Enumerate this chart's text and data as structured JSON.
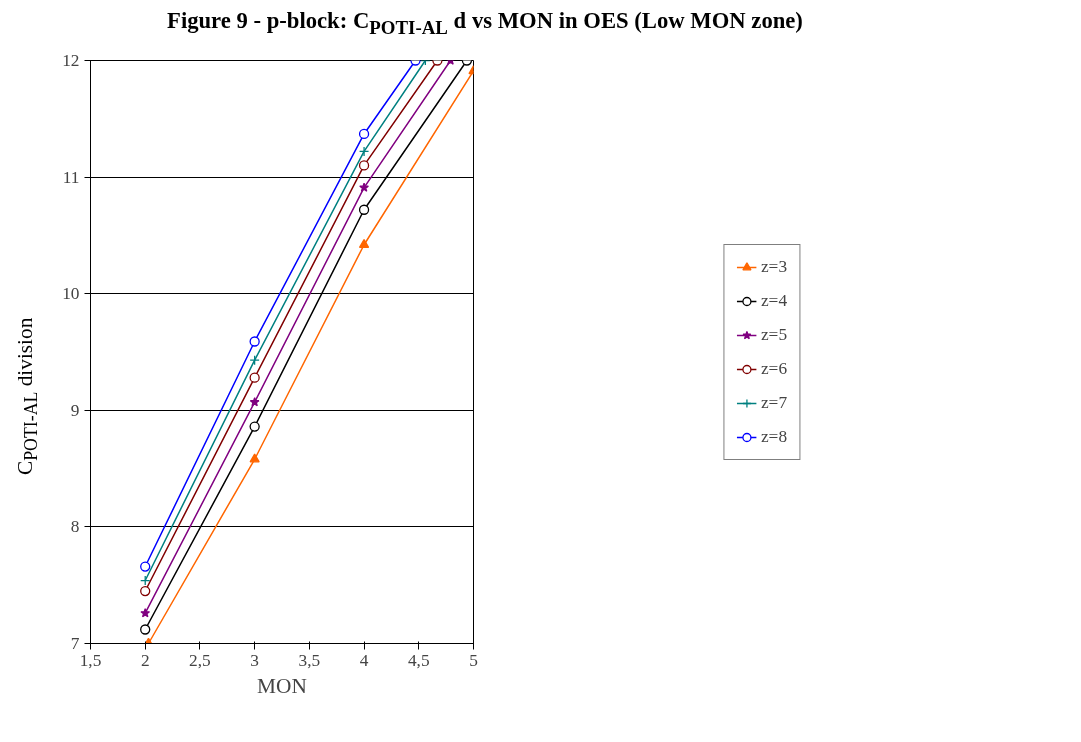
{
  "chart_data": {
    "type": "line",
    "title": "Figure 9 - p-block: C$_{POTI-AL}$ d vs MON in OES (Low MON zone)",
    "xlabel": "MON",
    "ylabel": "C$_{POTI-AL}$ division",
    "xlim": [
      1.5,
      5
    ],
    "ylim": [
      7,
      12
    ],
    "xticks": [
      {
        "value": 1.5,
        "label": "1,5"
      },
      2,
      {
        "value": 2.5,
        "label": "2,5"
      },
      3,
      {
        "value": 3.5,
        "label": "3,5"
      },
      4,
      {
        "value": 4.5,
        "label": "4,5"
      },
      5
    ],
    "yticks": [
      7,
      8,
      9,
      10,
      11,
      12
    ],
    "grid": "y",
    "legend": "right",
    "series": [
      {
        "name": "z=3",
        "color": "#ff6600",
        "marker": "triangle",
        "x": [
          2.03,
          3,
          4,
          5
        ],
        "values": [
          7.0,
          8.58,
          10.42,
          11.91
        ]
      },
      {
        "name": "z=4",
        "color": "#000000",
        "marker": "circle",
        "x": [
          2,
          3,
          4,
          4.94
        ],
        "values": [
          7.12,
          8.86,
          10.72,
          12
        ]
      },
      {
        "name": "z=5",
        "color": "#800080",
        "marker": "star",
        "x": [
          2,
          3,
          4,
          4.79
        ],
        "values": [
          7.26,
          9.07,
          10.91,
          12
        ]
      },
      {
        "name": "z=6",
        "color": "#800000",
        "marker": "circle",
        "x": [
          2,
          3,
          4,
          4.67
        ],
        "values": [
          7.45,
          9.28,
          11.1,
          12
        ]
      },
      {
        "name": "z=7",
        "color": "#008080",
        "marker": "cross",
        "x": [
          2,
          3,
          4,
          4.56
        ],
        "values": [
          7.54,
          9.43,
          11.22,
          12
        ]
      },
      {
        "name": "z=8",
        "color": "#0000ff",
        "marker": "circle",
        "x": [
          2,
          3,
          4,
          4.47
        ],
        "values": [
          7.66,
          9.59,
          11.37,
          12
        ]
      }
    ]
  }
}
